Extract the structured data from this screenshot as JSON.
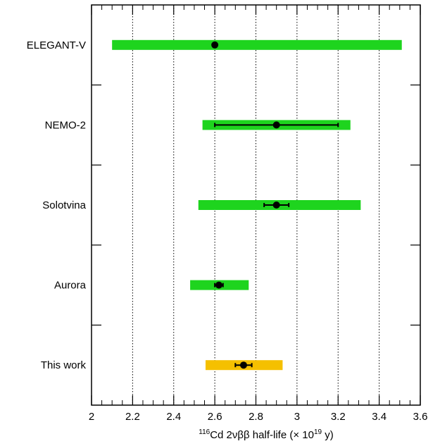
{
  "chart_data": {
    "type": "scatter",
    "orientation": "horizontal",
    "xlabel": {
      "isotope_mass": "116",
      "main": "Cd 2νββ half-life (× 10",
      "exponent": "19",
      "unit": " y)"
    },
    "xlim": [
      2.0,
      3.6
    ],
    "xticks": [
      "2",
      "2.2",
      "2.4",
      "2.6",
      "2.8",
      "3",
      "3.2",
      "3.4",
      "3.6"
    ],
    "grid": "vertical-dotted",
    "measurements": [
      {
        "label": "ELEGANT-V",
        "value": 2.6,
        "stat_err": [
          0.0,
          0.0
        ],
        "band": [
          2.1,
          3.51
        ],
        "band_color": "#1ed41e"
      },
      {
        "label": "NEMO-2",
        "value": 2.9,
        "stat_err": [
          2.6,
          3.2
        ],
        "band": [
          2.54,
          3.26
        ],
        "band_color": "#1ed41e"
      },
      {
        "label": "Solotvina",
        "value": 2.9,
        "stat_err": [
          2.84,
          2.96
        ],
        "band": [
          2.52,
          3.31
        ],
        "band_color": "#1ed41e"
      },
      {
        "label": "Aurora",
        "value": 2.62,
        "stat_err": [
          2.6,
          2.64
        ],
        "band": [
          2.48,
          2.765
        ],
        "band_color": "#1ed41e"
      },
      {
        "label": "This work",
        "value": 2.74,
        "stat_err": [
          2.7,
          2.78
        ],
        "band": [
          2.555,
          2.93
        ],
        "band_color": "#f5c000"
      }
    ]
  }
}
